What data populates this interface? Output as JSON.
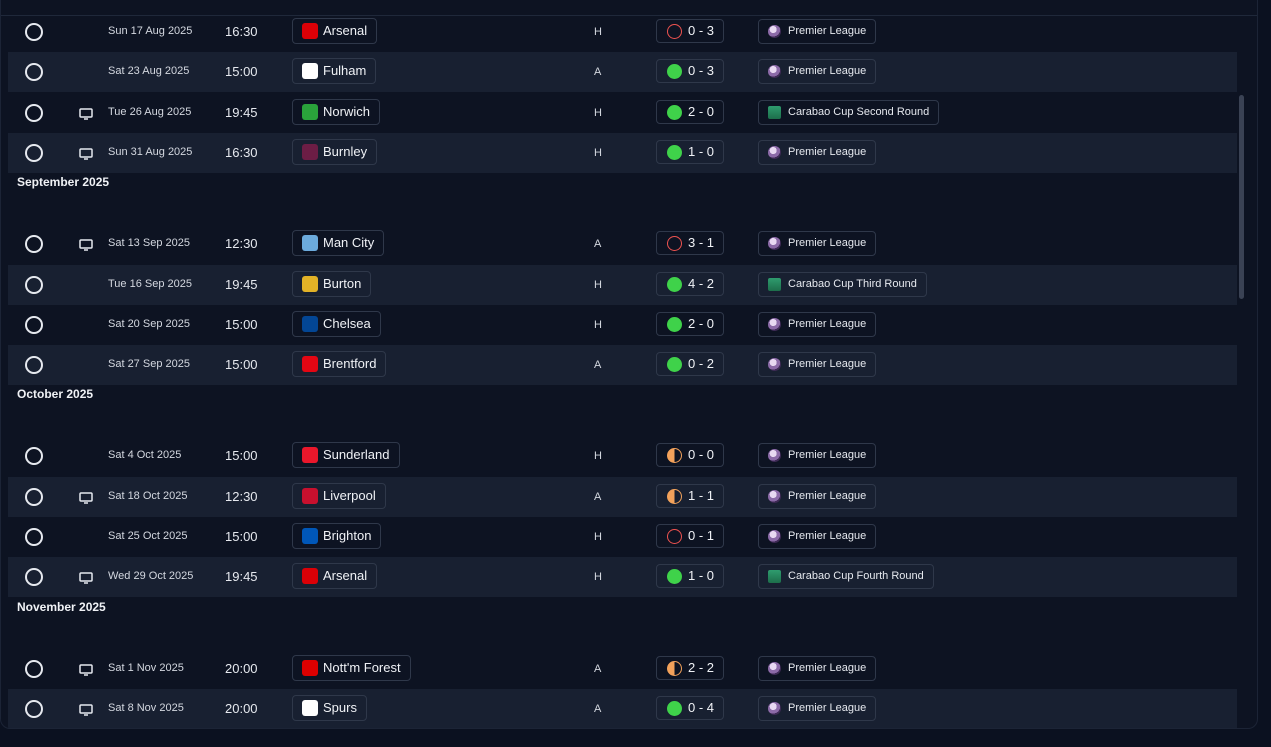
{
  "months": [
    {
      "name": "",
      "fixtures": [
        {
          "date": "Sun 17 Aug 2025",
          "time": "16:30",
          "tv": false,
          "opponent": "Arsenal",
          "crest": "#db0007",
          "venue": "H",
          "result": "loss",
          "score": "0 - 3",
          "competition": "Premier League",
          "comp_type": "pl"
        },
        {
          "date": "Sat 23 Aug 2025",
          "time": "15:00",
          "tv": false,
          "opponent": "Fulham",
          "crest": "#ffffff",
          "venue": "A",
          "result": "win",
          "score": "0 - 3",
          "competition": "Premier League",
          "comp_type": "pl"
        },
        {
          "date": "Tue 26 Aug 2025",
          "time": "19:45",
          "tv": true,
          "opponent": "Norwich",
          "crest": "#2aa33b",
          "venue": "H",
          "result": "win",
          "score": "2 - 0",
          "competition": "Carabao Cup Second Round",
          "comp_type": "cup"
        },
        {
          "date": "Sun 31 Aug 2025",
          "time": "16:30",
          "tv": true,
          "opponent": "Burnley",
          "crest": "#6c1d45",
          "venue": "H",
          "result": "win",
          "score": "1 - 0",
          "competition": "Premier League",
          "comp_type": "pl"
        }
      ]
    },
    {
      "name": "September 2025",
      "fixtures": [
        {
          "date": "Sat 13 Sep 2025",
          "time": "12:30",
          "tv": true,
          "opponent": "Man City",
          "crest": "#6cabdd",
          "venue": "A",
          "result": "loss",
          "score": "3 - 1",
          "competition": "Premier League",
          "comp_type": "pl"
        },
        {
          "date": "Tue 16 Sep 2025",
          "time": "19:45",
          "tv": false,
          "opponent": "Burton",
          "crest": "#e2b227",
          "venue": "H",
          "result": "win",
          "score": "4 - 2",
          "competition": "Carabao Cup Third Round",
          "comp_type": "cup"
        },
        {
          "date": "Sat 20 Sep 2025",
          "time": "15:00",
          "tv": false,
          "opponent": "Chelsea",
          "crest": "#034694",
          "venue": "H",
          "result": "win",
          "score": "2 - 0",
          "competition": "Premier League",
          "comp_type": "pl"
        },
        {
          "date": "Sat 27 Sep 2025",
          "time": "15:00",
          "tv": false,
          "opponent": "Brentford",
          "crest": "#e30613",
          "venue": "A",
          "result": "win",
          "score": "0 - 2",
          "competition": "Premier League",
          "comp_type": "pl"
        }
      ]
    },
    {
      "name": "October 2025",
      "fixtures": [
        {
          "date": "Sat 4 Oct 2025",
          "time": "15:00",
          "tv": false,
          "opponent": "Sunderland",
          "crest": "#eb172b",
          "venue": "H",
          "result": "draw",
          "score": "0 - 0",
          "competition": "Premier League",
          "comp_type": "pl"
        },
        {
          "date": "Sat 18 Oct 2025",
          "time": "12:30",
          "tv": true,
          "opponent": "Liverpool",
          "crest": "#c8102e",
          "venue": "A",
          "result": "draw",
          "score": "1 - 1",
          "competition": "Premier League",
          "comp_type": "pl"
        },
        {
          "date": "Sat 25 Oct 2025",
          "time": "15:00",
          "tv": false,
          "opponent": "Brighton",
          "crest": "#0057b8",
          "venue": "H",
          "result": "loss",
          "score": "0 - 1",
          "competition": "Premier League",
          "comp_type": "pl"
        },
        {
          "date": "Wed 29 Oct 2025",
          "time": "19:45",
          "tv": true,
          "opponent": "Arsenal",
          "crest": "#db0007",
          "venue": "H",
          "result": "win",
          "score": "1 - 0",
          "competition": "Carabao Cup Fourth Round",
          "comp_type": "cup"
        }
      ]
    },
    {
      "name": "November 2025",
      "fixtures": [
        {
          "date": "Sat 1 Nov 2025",
          "time": "20:00",
          "tv": true,
          "opponent": "Nott'm Forest",
          "crest": "#dd0000",
          "venue": "A",
          "result": "draw",
          "score": "2 - 2",
          "competition": "Premier League",
          "comp_type": "pl"
        },
        {
          "date": "Sat 8 Nov 2025",
          "time": "20:00",
          "tv": true,
          "opponent": "Spurs",
          "crest": "#ffffff",
          "venue": "A",
          "result": "win",
          "score": "0 - 4",
          "competition": "Premier League",
          "comp_type": "pl"
        }
      ]
    }
  ]
}
